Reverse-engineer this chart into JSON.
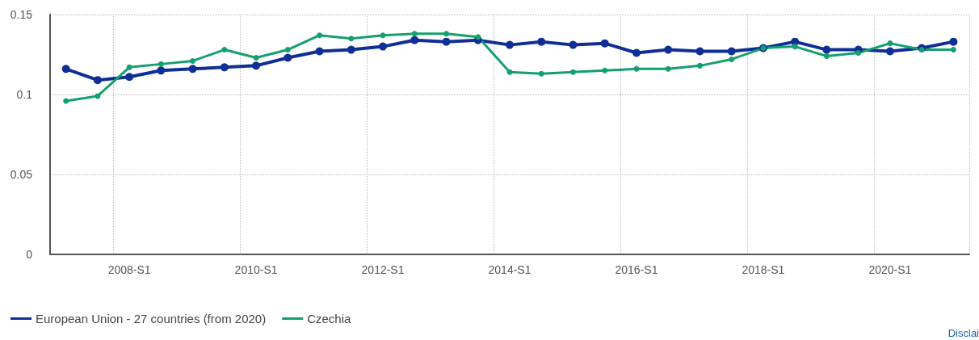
{
  "chart_data": {
    "type": "line",
    "categories": [
      null,
      null,
      "2008-S1",
      null,
      null,
      null,
      "2010-S1",
      null,
      null,
      null,
      "2012-S1",
      null,
      null,
      null,
      "2014-S1",
      null,
      null,
      null,
      "2016-S1",
      null,
      null,
      null,
      "2018-S1",
      null,
      null,
      null,
      "2020-S1",
      null,
      null
    ],
    "series": [
      {
        "name": "European Union - 27 countries (from 2020)",
        "color": "#0f2f96",
        "values": [
          0.116,
          0.109,
          0.111,
          0.115,
          0.116,
          0.117,
          0.118,
          0.123,
          0.127,
          0.128,
          0.13,
          0.134,
          0.133,
          0.134,
          0.131,
          0.133,
          0.131,
          0.132,
          0.126,
          0.128,
          0.127,
          0.127,
          0.129,
          0.133,
          0.128,
          0.128,
          0.127,
          0.129,
          0.133
        ]
      },
      {
        "name": "Czechia",
        "color": "#14a06e",
        "values": [
          0.096,
          0.099,
          0.117,
          0.119,
          0.121,
          0.128,
          0.123,
          0.128,
          0.137,
          0.135,
          0.137,
          0.138,
          0.138,
          0.136,
          0.114,
          0.113,
          0.114,
          0.115,
          0.116,
          0.116,
          0.118,
          0.122,
          0.129,
          0.13,
          0.124,
          0.126,
          0.132,
          0.128,
          0.128
        ]
      }
    ],
    "ylim": [
      0,
      0.15
    ],
    "yticks": [
      0,
      0.05,
      0.1,
      0.15
    ],
    "grid": true,
    "legend": "bottom left",
    "marker": "circle",
    "line_style": "solid",
    "annotations": [
      "Disclai"
    ]
  }
}
